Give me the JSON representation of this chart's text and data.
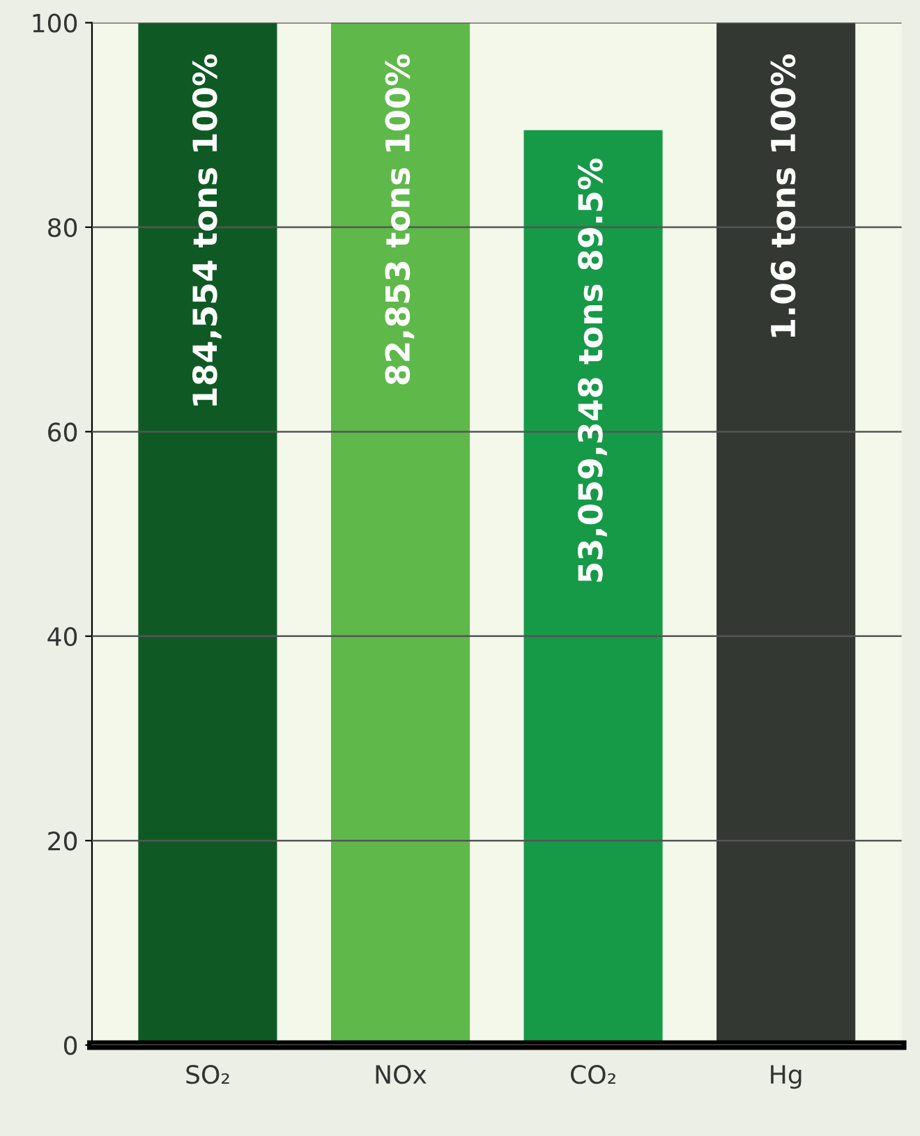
{
  "chart_data": {
    "type": "bar",
    "categories": [
      "SO₂",
      "NOx",
      "CO₂",
      "Hg"
    ],
    "values": [
      100,
      100,
      89.5,
      100
    ],
    "colors": [
      "#0f5a24",
      "#5fb84a",
      "#169a48",
      "#333833"
    ],
    "value_labels": [
      "184,554 tons 100%",
      "82,853 tons 100%",
      "53,059,348 tons 89.5%",
      "1.06 tons 100%"
    ],
    "ylim": [
      0,
      100
    ],
    "yticks": [
      0,
      20,
      40,
      60,
      80,
      100
    ],
    "grid": "y",
    "legend": false
  }
}
